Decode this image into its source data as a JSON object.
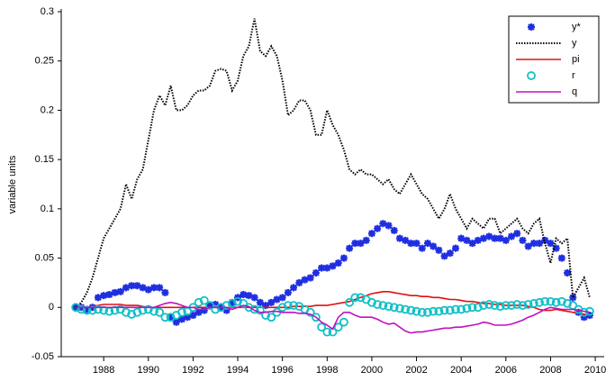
{
  "chart_data": {
    "type": "line",
    "y_label": "variable units",
    "xlim": [
      1986.1,
      2010.4
    ],
    "xticks": [
      1988,
      1990,
      1992,
      1994,
      1996,
      1998,
      2000,
      2002,
      2004,
      2006,
      2008,
      2010
    ],
    "ylim": [
      -0.05,
      0.3
    ],
    "yticks": [
      -0.05,
      0,
      0.05,
      0.1,
      0.15,
      0.2,
      0.25,
      0.3
    ],
    "legend": "top-right",
    "x": [
      1986.75,
      1987,
      1987.25,
      1987.5,
      1987.75,
      1988,
      1988.25,
      1988.5,
      1988.75,
      1989,
      1989.25,
      1989.5,
      1989.75,
      1990,
      1990.25,
      1990.5,
      1990.75,
      1991,
      1991.25,
      1991.5,
      1991.75,
      1992,
      1992.25,
      1992.5,
      1992.75,
      1993,
      1993.25,
      1993.5,
      1993.75,
      1994,
      1994.25,
      1994.5,
      1994.75,
      1995,
      1995.25,
      1995.5,
      1995.75,
      1996,
      1996.25,
      1996.5,
      1996.75,
      1997,
      1997.25,
      1997.5,
      1997.75,
      1998,
      1998.25,
      1998.5,
      1998.75,
      1999,
      1999.25,
      1999.5,
      1999.75,
      2000,
      2000.25,
      2000.5,
      2000.75,
      2001,
      2001.25,
      2001.5,
      2001.75,
      2002,
      2002.25,
      2002.5,
      2002.75,
      2003,
      2003.25,
      2003.5,
      2003.75,
      2004,
      2004.25,
      2004.5,
      2004.75,
      2005,
      2005.25,
      2005.5,
      2005.75,
      2006,
      2006.25,
      2006.5,
      2006.75,
      2007,
      2007.25,
      2007.5,
      2007.75,
      2008,
      2008.25,
      2008.5,
      2008.75,
      2009,
      2009.25,
      2009.5,
      2009.75
    ],
    "series": [
      {
        "name": "y*",
        "color": "#1f2ee0",
        "style": "markers",
        "marker": "star",
        "values": [
          0,
          0,
          -0.002,
          0,
          0.01,
          0.012,
          0.013,
          0.015,
          0.016,
          0.02,
          0.022,
          0.022,
          0.02,
          0.018,
          0.02,
          0.02,
          0.015,
          -0.01,
          -0.015,
          -0.012,
          -0.01,
          -0.008,
          -0.005,
          -0.003,
          0.002,
          0.003,
          0,
          -0.003,
          0.005,
          0.01,
          0.013,
          0.012,
          0.01,
          0.005,
          0.002,
          0.005,
          0.008,
          0.01,
          0.015,
          0.02,
          0.025,
          0.028,
          0.03,
          0.035,
          0.04,
          0.04,
          0.042,
          0.045,
          0.05,
          0.06,
          0.065,
          0.065,
          0.068,
          0.075,
          0.08,
          0.085,
          0.083,
          0.078,
          0.07,
          0.068,
          0.065,
          0.065,
          0.06,
          0.065,
          0.062,
          0.058,
          0.052,
          0.055,
          0.06,
          0.07,
          0.068,
          0.065,
          0.068,
          0.07,
          0.072,
          0.07,
          0.07,
          0.068,
          0.072,
          0.075,
          0.068,
          0.062,
          0.065,
          0.065,
          0.068,
          0.065,
          0.06,
          0.05,
          0.035,
          0.01,
          -0.005,
          -0.01,
          -0.008
        ]
      },
      {
        "name": "y",
        "color": "#000000",
        "style": "dotted",
        "values": [
          0,
          0.005,
          0.015,
          0.03,
          0.05,
          0.07,
          0.08,
          0.09,
          0.1,
          0.125,
          0.11,
          0.13,
          0.14,
          0.17,
          0.2,
          0.215,
          0.205,
          0.225,
          0.2,
          0.2,
          0.205,
          0.215,
          0.22,
          0.22,
          0.225,
          0.24,
          0.242,
          0.24,
          0.22,
          0.23,
          0.255,
          0.265,
          0.293,
          0.26,
          0.255,
          0.265,
          0.255,
          0.23,
          0.195,
          0.2,
          0.21,
          0.21,
          0.2,
          0.175,
          0.175,
          0.2,
          0.185,
          0.175,
          0.16,
          0.14,
          0.135,
          0.14,
          0.135,
          0.135,
          0.13,
          0.125,
          0.13,
          0.12,
          0.115,
          0.125,
          0.135,
          0.125,
          0.115,
          0.11,
          0.1,
          0.09,
          0.1,
          0.115,
          0.1,
          0.09,
          0.08,
          0.09,
          0.085,
          0.08,
          0.09,
          0.09,
          0.075,
          0.08,
          0.085,
          0.09,
          0.08,
          0.075,
          0.085,
          0.09,
          0.065,
          0.045,
          0.07,
          0.065,
          0.07,
          0.01,
          0.02,
          0.03,
          0.01
        ]
      },
      {
        "name": "pi",
        "color": "#e01010",
        "style": "solid",
        "values": [
          0,
          0,
          0,
          0.001,
          0.002,
          0.003,
          0.003,
          0.003,
          0.003,
          0.002,
          0.002,
          0.002,
          0.001,
          0,
          0,
          0,
          0,
          0,
          0,
          0,
          0,
          0,
          0,
          0,
          0,
          0,
          0,
          0,
          0,
          0,
          0,
          0,
          0,
          0,
          0,
          0,
          0,
          0,
          0,
          0.001,
          0.001,
          0.001,
          0.001,
          0.002,
          0.002,
          0.002,
          0.003,
          0.004,
          0.005,
          0.006,
          0.008,
          0.01,
          0.012,
          0.014,
          0.015,
          0.016,
          0.016,
          0.015,
          0.014,
          0.013,
          0.012,
          0.012,
          0.011,
          0.011,
          0.01,
          0.01,
          0.009,
          0.008,
          0.008,
          0.007,
          0.006,
          0.006,
          0.005,
          0.004,
          0.004,
          0.003,
          0.003,
          0.002,
          0.002,
          0.002,
          0.002,
          0.001,
          0,
          -0.002,
          -0.003,
          -0.003,
          -0.002,
          -0.003,
          -0.004,
          -0.005,
          -0.006,
          -0.007,
          -0.008
        ]
      },
      {
        "name": "r",
        "color": "#10c0c8",
        "style": "markers",
        "marker": "circle",
        "values": [
          0,
          -0.002,
          -0.003,
          -0.003,
          -0.002,
          -0.003,
          -0.004,
          -0.003,
          -0.002,
          -0.005,
          -0.007,
          -0.005,
          -0.003,
          -0.002,
          -0.004,
          -0.005,
          -0.01,
          -0.01,
          -0.008,
          -0.005,
          -0.004,
          0,
          0.005,
          0.007,
          0.002,
          -0.002,
          0,
          0.002,
          0.004,
          0.006,
          0.004,
          0,
          -0.002,
          -0.003,
          -0.008,
          -0.01,
          -0.005,
          0,
          0.002,
          0.002,
          0.001,
          -0.002,
          -0.005,
          -0.01,
          -0.02,
          -0.025,
          -0.025,
          -0.02,
          -0.015,
          0.005,
          0.01,
          0.01,
          0.008,
          0.005,
          0.003,
          0.002,
          0.001,
          0,
          -0.001,
          -0.002,
          -0.003,
          -0.004,
          -0.005,
          -0.005,
          -0.004,
          -0.004,
          -0.003,
          -0.003,
          -0.002,
          -0.002,
          -0.001,
          0,
          0,
          0.002,
          0.003,
          0.002,
          0.001,
          0.002,
          0.002,
          0.003,
          0.002,
          0.003,
          0.004,
          0.005,
          0.006,
          0.006,
          0.005,
          0.006,
          0.004,
          0.002,
          -0.002,
          -0.005,
          -0.004
        ]
      },
      {
        "name": "q",
        "color": "#c010c0",
        "style": "solid",
        "values": [
          0,
          0,
          0,
          0,
          0,
          0,
          0,
          0,
          0,
          0,
          0,
          0,
          0,
          0,
          0,
          0.002,
          0.004,
          0.005,
          0.004,
          0.002,
          0,
          0,
          -0.002,
          -0.002,
          0,
          0,
          0,
          0,
          -0.002,
          0,
          0.002,
          0.001,
          -0.003,
          -0.005,
          -0.005,
          -0.004,
          -0.004,
          -0.005,
          -0.005,
          -0.005,
          -0.006,
          -0.006,
          -0.007,
          -0.01,
          -0.015,
          -0.018,
          -0.022,
          -0.01,
          -0.005,
          -0.005,
          -0.008,
          -0.01,
          -0.01,
          -0.01,
          -0.012,
          -0.015,
          -0.017,
          -0.016,
          -0.02,
          -0.024,
          -0.026,
          -0.025,
          -0.025,
          -0.024,
          -0.023,
          -0.022,
          -0.021,
          -0.021,
          -0.02,
          -0.02,
          -0.019,
          -0.018,
          -0.017,
          -0.015,
          -0.016,
          -0.018,
          -0.018,
          -0.018,
          -0.017,
          -0.015,
          -0.013,
          -0.01,
          -0.008,
          -0.005,
          -0.002,
          0,
          -0.001,
          -0.002,
          -0.002,
          -0.002,
          -0.003,
          -0.004,
          -0.005
        ]
      }
    ]
  }
}
